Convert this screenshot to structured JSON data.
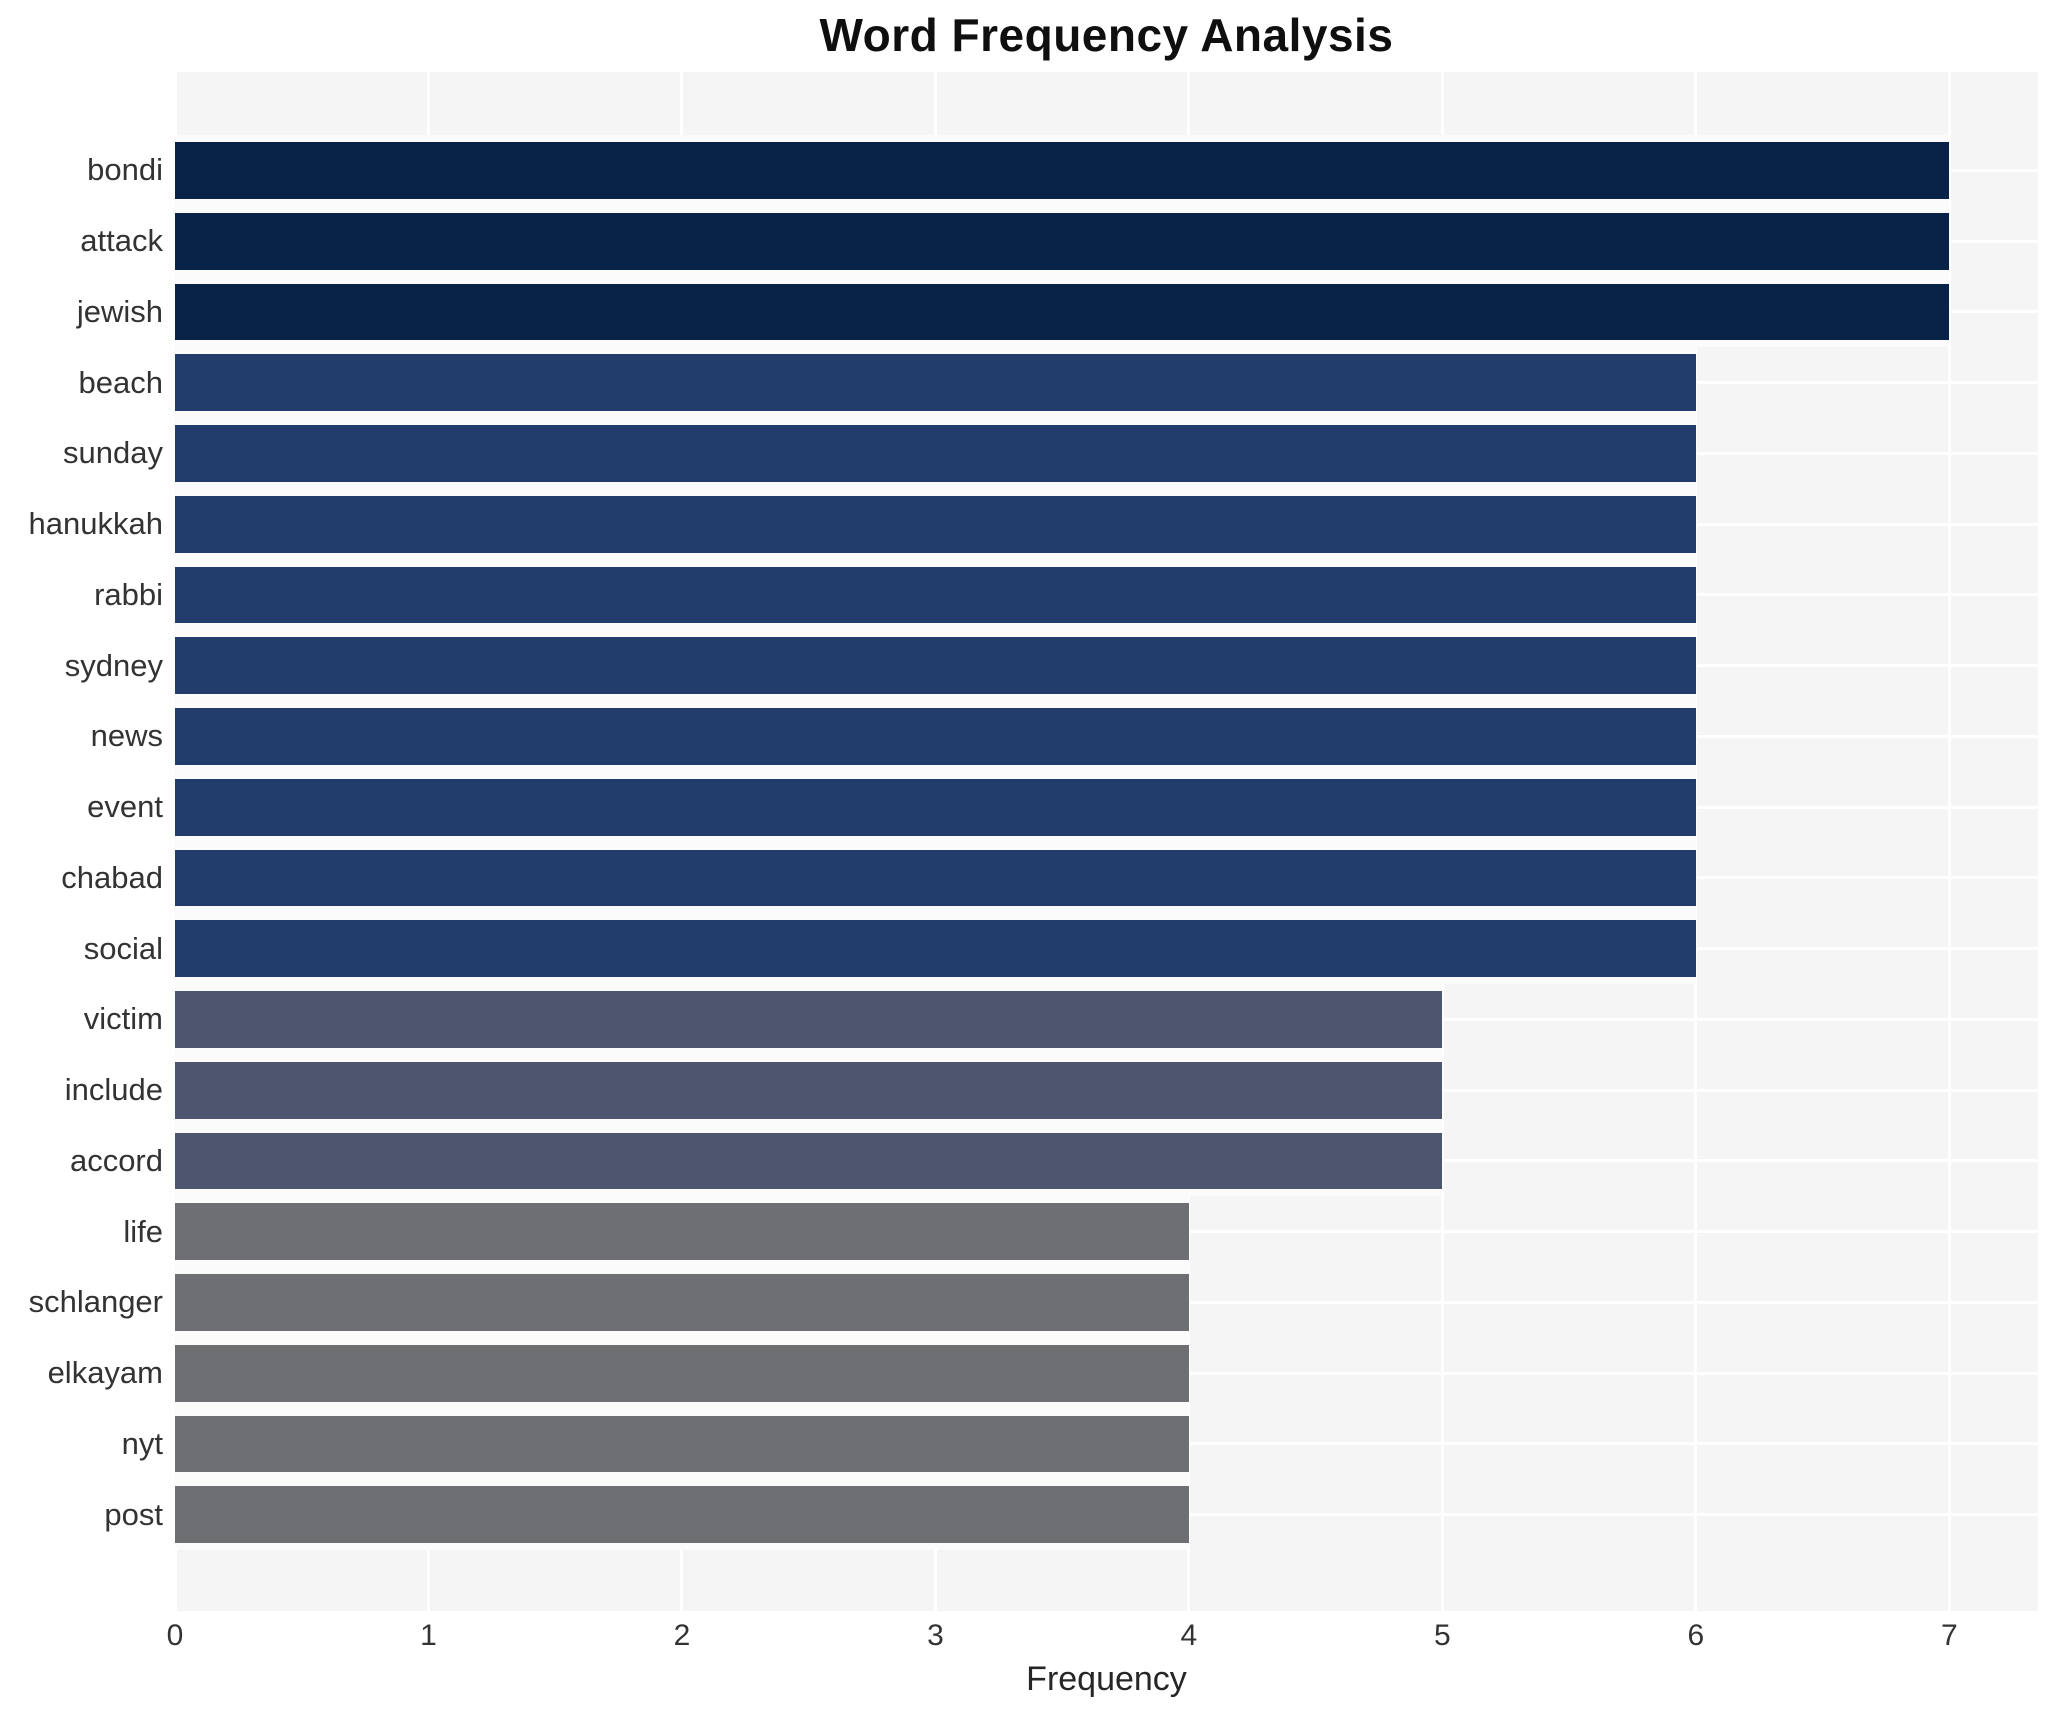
{
  "title": "Word Frequency Analysis",
  "chart_data": {
    "type": "bar",
    "orientation": "horizontal",
    "title": "Word Frequency Analysis",
    "xlabel": "Frequency",
    "ylabel": "",
    "categories": [
      "bondi",
      "attack",
      "jewish",
      "beach",
      "sunday",
      "hanukkah",
      "rabbi",
      "sydney",
      "news",
      "event",
      "chabad",
      "social",
      "victim",
      "include",
      "accord",
      "life",
      "schlanger",
      "elkayam",
      "nyt",
      "post"
    ],
    "values": [
      7,
      7,
      7,
      6,
      6,
      6,
      6,
      6,
      6,
      6,
      6,
      6,
      5,
      5,
      5,
      4,
      4,
      4,
      4,
      4
    ],
    "xlim": [
      0,
      7.35
    ],
    "xticks": [
      0,
      1,
      2,
      3,
      4,
      5,
      6,
      7
    ],
    "grid": true,
    "legend": false,
    "plot_background": "#f5f5f6",
    "gridline_color": "#ffffff",
    "bar_colors_by_value": {
      "7": "#082347",
      "6": "#223c6c",
      "5": "#4e566f",
      "4": "#6e6f73"
    }
  }
}
